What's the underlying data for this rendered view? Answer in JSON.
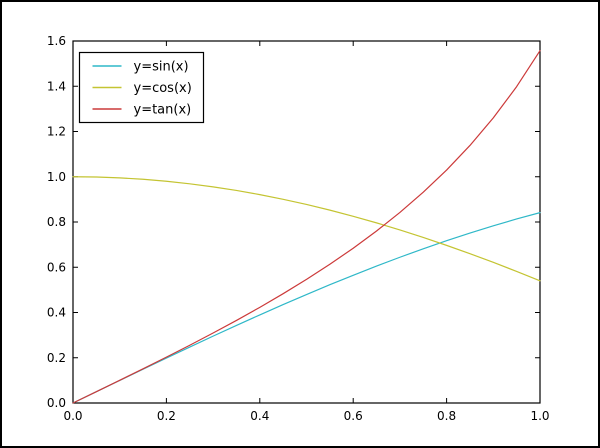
{
  "figure": {
    "background": "#ffffff",
    "frame_color": "#000000",
    "axes_color": "#000000",
    "tick_color": "#000000"
  },
  "chart_data": {
    "type": "line",
    "title": "",
    "xlabel": "",
    "ylabel": "",
    "xlim": [
      0.0,
      1.0
    ],
    "ylim": [
      0.0,
      1.6
    ],
    "x_tick_labels": [
      "0.0",
      "0.2",
      "0.4",
      "0.6",
      "0.8",
      "1.0"
    ],
    "y_tick_labels": [
      "0.0",
      "0.2",
      "0.4",
      "0.6",
      "0.8",
      "1.0",
      "1.2",
      "1.4",
      "1.6"
    ],
    "grid": false,
    "tick_direction": "in",
    "legend": {
      "position": "upper-left",
      "border_color": "#000000",
      "background": "#ffffff",
      "entries": [
        "y=sin(x)",
        "y=cos(x)",
        "y=tan(x)"
      ]
    },
    "x": [
      0.0,
      0.05,
      0.1,
      0.15,
      0.2,
      0.25,
      0.3,
      0.35,
      0.4,
      0.45,
      0.5,
      0.55,
      0.6,
      0.65,
      0.7,
      0.75,
      0.8,
      0.85,
      0.9,
      0.95,
      1.0
    ],
    "series": [
      {
        "name": "y=sin(x)",
        "color": "#2fb8c8",
        "values": [
          0.0,
          0.05,
          0.0998,
          0.1494,
          0.1987,
          0.2474,
          0.2955,
          0.3429,
          0.3894,
          0.435,
          0.4794,
          0.5227,
          0.5646,
          0.6052,
          0.6442,
          0.6816,
          0.7174,
          0.7513,
          0.7833,
          0.8134,
          0.8415
        ]
      },
      {
        "name": "y=cos(x)",
        "color": "#c4c432",
        "values": [
          1.0,
          0.9988,
          0.995,
          0.9888,
          0.9801,
          0.9689,
          0.9553,
          0.9394,
          0.9211,
          0.9004,
          0.8776,
          0.8525,
          0.8253,
          0.7961,
          0.7648,
          0.7317,
          0.6967,
          0.66,
          0.6216,
          0.5817,
          0.5403
        ]
      },
      {
        "name": "y=tan(x)",
        "color": "#cc3a3a",
        "values": [
          0.0,
          0.05,
          0.1003,
          0.1511,
          0.2027,
          0.2553,
          0.3093,
          0.365,
          0.4228,
          0.4831,
          0.5463,
          0.6131,
          0.6841,
          0.7602,
          0.8423,
          0.9316,
          1.0296,
          1.1383,
          1.2602,
          1.3984,
          1.5574
        ]
      }
    ]
  }
}
